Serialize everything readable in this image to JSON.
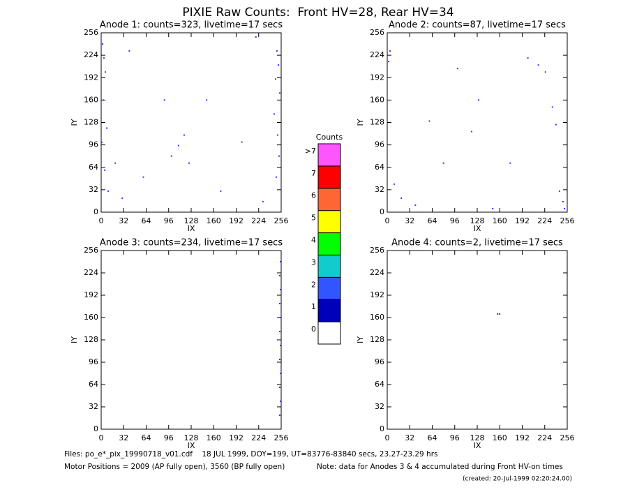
{
  "title": "PIXIE Raw Counts:  Front HV=28, Rear HV=34",
  "chart_data": [
    {
      "type": "scatter",
      "title": "Anode 1: counts=323, livetime=17 secs",
      "x_label": "IX",
      "y_label": "IY",
      "color": "#3333ff",
      "xlim": [
        0,
        256
      ],
      "ylim": [
        0,
        256
      ],
      "xticks": [
        0,
        32,
        64,
        96,
        128,
        160,
        192,
        224,
        256
      ],
      "yticks": [
        0,
        32,
        64,
        96,
        128,
        160,
        192,
        224,
        256
      ],
      "x": [
        2,
        4,
        6,
        3,
        8,
        1,
        5,
        10,
        250,
        252,
        248,
        254,
        246,
        251,
        253,
        249,
        30,
        60,
        100,
        110,
        118,
        125,
        150,
        170,
        200,
        230,
        20,
        40,
        90,
        220
      ],
      "values": [
        240,
        220,
        200,
        160,
        120,
        100,
        60,
        30,
        230,
        210,
        190,
        170,
        140,
        110,
        80,
        50,
        20,
        50,
        80,
        95,
        110,
        70,
        160,
        30,
        100,
        15,
        70,
        230,
        160,
        250
      ]
    },
    {
      "type": "scatter",
      "title": "Anode 2: counts=87, livetime=17 secs",
      "x_label": "IX",
      "y_label": "IY",
      "color": "#3333ff",
      "xlim": [
        0,
        256
      ],
      "ylim": [
        0,
        256
      ],
      "xticks": [
        0,
        32,
        64,
        96,
        128,
        160,
        192,
        224,
        256
      ],
      "yticks": [
        0,
        32,
        64,
        96,
        128,
        160,
        192,
        224,
        256
      ],
      "x": [
        2,
        4,
        10,
        20,
        40,
        60,
        80,
        100,
        120,
        130,
        150,
        175,
        200,
        215,
        225,
        235,
        240,
        245,
        250,
        252
      ],
      "values": [
        215,
        230,
        40,
        20,
        10,
        130,
        70,
        205,
        115,
        160,
        5,
        70,
        220,
        210,
        200,
        150,
        125,
        30,
        15,
        5
      ]
    },
    {
      "type": "scatter",
      "title": "Anode 3: counts=234, livetime=17 secs",
      "x_label": "IX",
      "y_label": "IY",
      "color": "#3333ff",
      "xlim": [
        0,
        256
      ],
      "ylim": [
        0,
        256
      ],
      "xticks": [
        0,
        32,
        64,
        96,
        128,
        160,
        192,
        224,
        256
      ],
      "yticks": [
        0,
        32,
        64,
        96,
        128,
        160,
        192,
        224,
        256
      ],
      "x": [
        254,
        255,
        254,
        255,
        254,
        255,
        254,
        255,
        254,
        255,
        254,
        255
      ],
      "values": [
        20,
        40,
        60,
        80,
        100,
        120,
        140,
        160,
        180,
        200,
        220,
        240
      ]
    },
    {
      "type": "scatter",
      "title": "Anode 4: counts=2, livetime=17 secs",
      "x_label": "IX",
      "y_label": "IY",
      "color": "#3333ff",
      "xlim": [
        0,
        256
      ],
      "ylim": [
        0,
        256
      ],
      "xticks": [
        0,
        32,
        64,
        96,
        128,
        160,
        192,
        224,
        256
      ],
      "yticks": [
        0,
        32,
        64,
        96,
        128,
        160,
        192,
        224,
        256
      ],
      "x": [
        157,
        160
      ],
      "values": [
        165,
        165
      ]
    },
    {
      "type": "colorbar",
      "title": "Counts",
      "categories": [
        "0",
        "1",
        "2",
        "3",
        "4",
        "5",
        "6",
        "7",
        ">7"
      ],
      "colors": [
        "#ffffff",
        "#0000bb",
        "#3355ff",
        "#11cccc",
        "#00ff00",
        "#ffff00",
        "#ff6633",
        "#ff0000",
        "#ff55ff"
      ]
    }
  ],
  "footer": {
    "files": "Files: po_e*_pix_19990718_v01.cdf    18 JUL 1999, DOY=199, UT=83776-83840 secs, 23.27-23.29 hrs",
    "motor": "Motor Positions = 2009 (AP fully open), 3560 (BP fully open)",
    "note": "Note: data for Anodes 3 & 4 accumulated during Front HV-on times",
    "created": "(created: 20-Jul-1999 02:20:24.00)"
  }
}
